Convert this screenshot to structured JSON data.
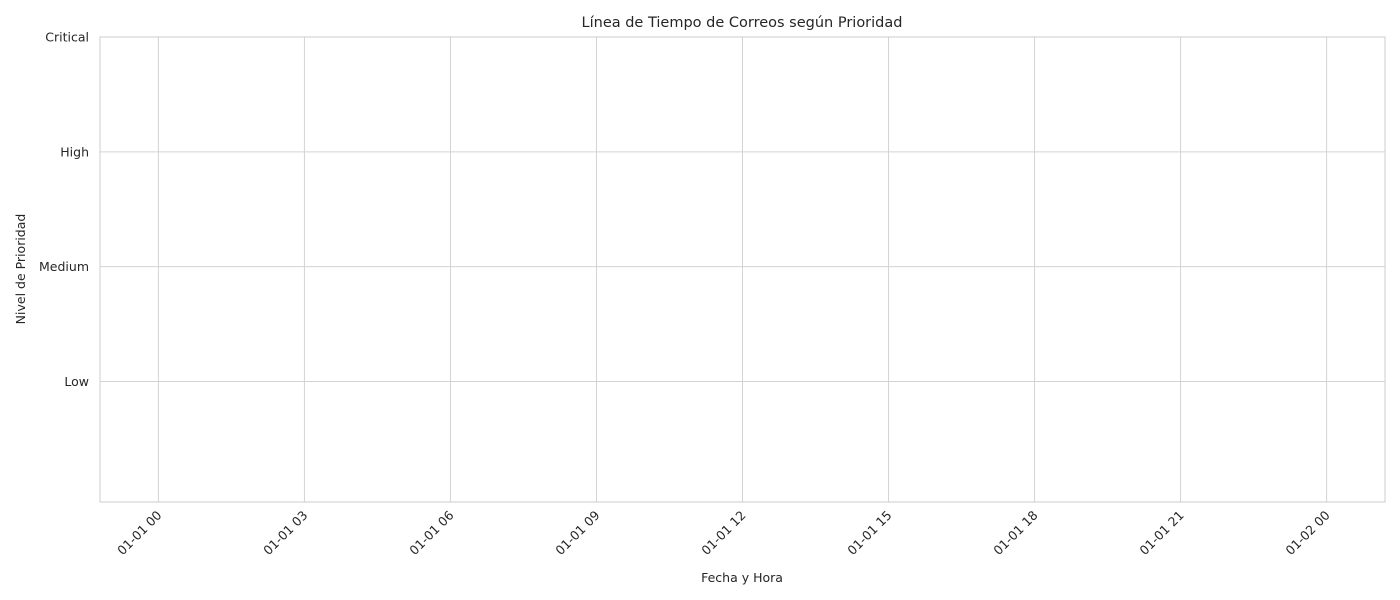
{
  "chart_data": {
    "type": "scatter",
    "title": "Línea de Tiempo de Correos según Prioridad",
    "xlabel": "Fecha y Hora",
    "ylabel": "Nivel de Prioridad",
    "x_ticks": [
      "01-01 00",
      "01-01 03",
      "01-01 06",
      "01-01 09",
      "01-01 12",
      "01-01 15",
      "01-01 18",
      "01-01 21",
      "01-02 00"
    ],
    "x_tick_rotation_deg": 45,
    "y_categories": [
      "Low",
      "Medium",
      "High",
      "Critical"
    ],
    "y_tick_values": [
      1,
      2,
      3,
      4
    ],
    "ylim": [
      -0.05,
      4
    ],
    "x_tick_hours": [
      0,
      3,
      6,
      9,
      12,
      15,
      18,
      21,
      24
    ],
    "xlim_hours": [
      -1.2,
      25.2
    ],
    "series": [],
    "grid": true,
    "legend": "none",
    "colors": {
      "grid": "#d3d3d3",
      "frame": "#cccccc",
      "text": "#262626",
      "background": "#ffffff"
    }
  }
}
